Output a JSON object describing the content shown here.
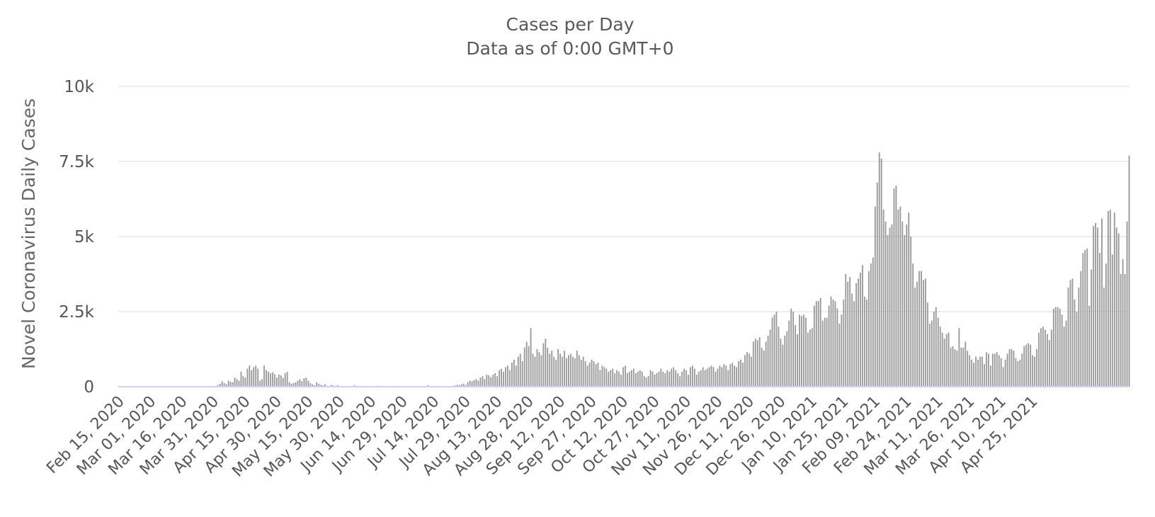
{
  "chart_data": {
    "type": "bar",
    "title": "Cases per Day",
    "subtitle": "Data as of 0:00 GMT+0",
    "ylabel": "Novel Coronavirus Daily Cases",
    "xlabel": "",
    "ylim": [
      0,
      10000
    ],
    "yticks": [
      0,
      2500,
      5000,
      7500,
      10000
    ],
    "ytick_labels": [
      "0",
      "2.5k",
      "5k",
      "7.5k",
      "10k"
    ],
    "grid": true,
    "legend": "none",
    "x_start": "2020-02-15",
    "x_tick_labels": [
      "Feb 15, 2020",
      "Mar 01, 2020",
      "Mar 16, 2020",
      "Mar 31, 2020",
      "Apr 15, 2020",
      "Apr 30, 2020",
      "May 15, 2020",
      "May 30, 2020",
      "Jun 14, 2020",
      "Jun 29, 2020",
      "Jul 14, 2020",
      "Jul 29, 2020",
      "Aug 13, 2020",
      "Aug 28, 2020",
      "Sep 12, 2020",
      "Sep 27, 2020",
      "Oct 12, 2020",
      "Oct 27, 2020",
      "Nov 11, 2020",
      "Nov 26, 2020",
      "Dec 11, 2020",
      "Dec 26, 2020",
      "Jan 10, 2021",
      "Jan 25, 2021",
      "Feb 09, 2021",
      "Feb 24, 2021",
      "Mar 11, 2021",
      "Mar 26, 2021",
      "Apr 10, 2021",
      "Apr 25, 2021"
    ],
    "bar_color": "#999999",
    "values": [
      0,
      0,
      0,
      0,
      0,
      0,
      0,
      0,
      0,
      0,
      0,
      0,
      0,
      0,
      0,
      0,
      0,
      0,
      0,
      0,
      0,
      0,
      0,
      0,
      0,
      0,
      0,
      0,
      0,
      0,
      0,
      0,
      0,
      0,
      0,
      0,
      0,
      0,
      0,
      0,
      0,
      0,
      0,
      0,
      0,
      0,
      30,
      60,
      100,
      180,
      120,
      80,
      200,
      160,
      150,
      300,
      250,
      200,
      500,
      350,
      300,
      600,
      700,
      550,
      650,
      700,
      600,
      200,
      250,
      700,
      550,
      500,
      450,
      480,
      420,
      300,
      400,
      380,
      300,
      450,
      500,
      150,
      100,
      120,
      150,
      200,
      250,
      180,
      280,
      300,
      200,
      120,
      80,
      50,
      150,
      100,
      60,
      40,
      80,
      30,
      20,
      60,
      40,
      30,
      50,
      20,
      10,
      0,
      0,
      0,
      0,
      0,
      50,
      0,
      0,
      0,
      0,
      0,
      0,
      0,
      0,
      0,
      0,
      30,
      0,
      0,
      0,
      0,
      0,
      0,
      0,
      0,
      0,
      0,
      0,
      0,
      0,
      0,
      0,
      0,
      0,
      0,
      0,
      0,
      0,
      0,
      0,
      50,
      0,
      0,
      0,
      0,
      0,
      0,
      0,
      0,
      0,
      0,
      0,
      30,
      40,
      60,
      50,
      80,
      100,
      60,
      150,
      200,
      180,
      220,
      250,
      200,
      300,
      350,
      250,
      400,
      380,
      320,
      400,
      450,
      350,
      550,
      600,
      500,
      650,
      700,
      550,
      800,
      900,
      700,
      1000,
      1100,
      850,
      1300,
      1500,
      1350,
      1950,
      1100,
      1000,
      1250,
      1150,
      1050,
      1450,
      1600,
      1300,
      1100,
      1200,
      1000,
      900,
      1250,
      1100,
      1000,
      1200,
      950,
      1050,
      1100,
      1000,
      950,
      1200,
      1050,
      900,
      1000,
      850,
      700,
      800,
      900,
      850,
      750,
      800,
      550,
      700,
      650,
      600,
      500,
      550,
      600,
      450,
      550,
      500,
      400,
      650,
      700,
      450,
      500,
      550,
      600,
      450,
      500,
      550,
      500,
      350,
      300,
      350,
      550,
      500,
      400,
      450,
      500,
      600,
      500,
      450,
      550,
      500,
      600,
      650,
      550,
      450,
      350,
      500,
      600,
      550,
      400,
      650,
      700,
      600,
      400,
      500,
      550,
      650,
      550,
      600,
      650,
      700,
      650,
      500,
      600,
      700,
      650,
      750,
      700,
      550,
      750,
      800,
      700,
      650,
      850,
      900,
      800,
      1050,
      1150,
      1100,
      1000,
      1500,
      1600,
      1550,
      1650,
      1300,
      1200,
      1500,
      1700,
      1900,
      2300,
      2400,
      2500,
      2000,
      1600,
      1400,
      1700,
      1850,
      2200,
      2600,
      2500,
      2050,
      1750,
      2400,
      2350,
      2400,
      2300,
      1800,
      1900,
      1950,
      2700,
      2850,
      2850,
      2950,
      2200,
      2300,
      2300,
      2700,
      3000,
      2900,
      2850,
      2600,
      2100,
      2400,
      2900,
      3750,
      3500,
      3650,
      3100,
      2850,
      3450,
      3600,
      3800,
      4050,
      3000,
      2900,
      3850,
      4100,
      4300,
      6000,
      6800,
      7800,
      7600,
      5900,
      5500,
      5050,
      5300,
      5400,
      6600,
      6700,
      5900,
      6000,
      5500,
      5050,
      5400,
      5800,
      5000,
      4100,
      3300,
      3500,
      3850,
      3850,
      3550,
      3600,
      2800,
      2100,
      2200,
      2500,
      2650,
      2300,
      2000,
      1800,
      1600,
      1750,
      1800,
      1300,
      1350,
      1250,
      1200,
      1950,
      1300,
      1300,
      1500,
      1200,
      1050,
      900,
      800,
      1000,
      900,
      1000,
      1000,
      750,
      1150,
      1100,
      700,
      1100,
      1100,
      1150,
      1050,
      950,
      650,
      900,
      1100,
      1250,
      1250,
      1200,
      950,
      850,
      900,
      1100,
      1350,
      1400,
      1450,
      1400,
      1050,
      1000,
      1250,
      1800,
      1950,
      2000,
      1900,
      1750,
      1550,
      1900,
      2600,
      2650,
      2650,
      2600,
      2400,
      2000,
      2200,
      3300,
      3550,
      3600,
      2900,
      2500,
      3300,
      3850,
      4450,
      4550,
      4600,
      2700,
      3900,
      5350,
      5450,
      5300,
      4450,
      5600,
      3300,
      4100,
      5850,
      5900,
      4400,
      5800,
      5300,
      5100,
      3750,
      4250,
      3750,
      5500,
      7700
    ]
  }
}
